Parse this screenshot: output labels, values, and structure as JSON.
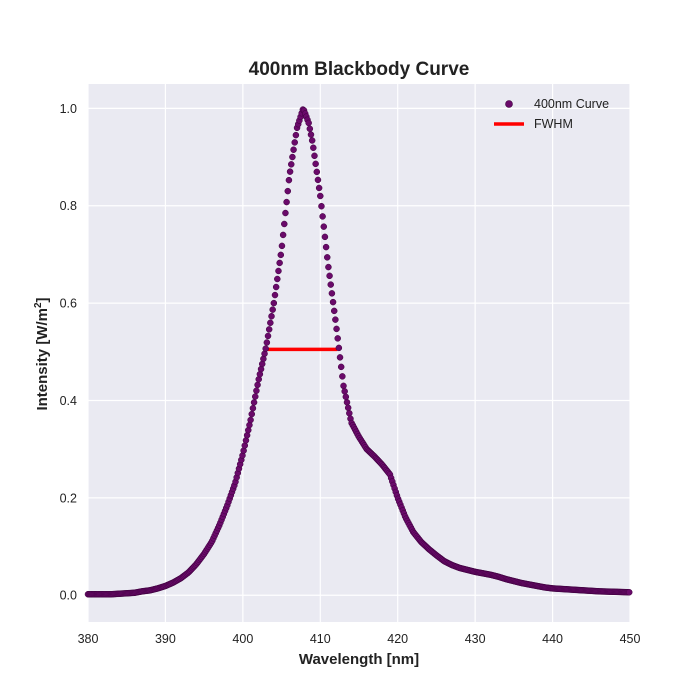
{
  "chart_data": {
    "type": "scatter",
    "title": "400nm Blackbody Curve",
    "xlabel": "Wavelength [nm]",
    "ylabel": "Intensity [W/m",
    "ylabel_sup": "2",
    "ylabel_close": "]",
    "xlim": [
      380,
      450
    ],
    "ylim": [
      -0.055,
      1.05
    ],
    "xticks": [
      380,
      390,
      400,
      410,
      420,
      430,
      440,
      450
    ],
    "xtick_labels": [
      "380",
      "390",
      "400",
      "410",
      "420",
      "430",
      "440",
      "450"
    ],
    "yticks": [
      0.0,
      0.2,
      0.4,
      0.6,
      0.8,
      1.0
    ],
    "ytick_labels": [
      "0.0",
      "0.2",
      "0.4",
      "0.6",
      "0.8",
      "1.0"
    ],
    "grid": true,
    "legend_position": "top-right",
    "series": [
      {
        "name": "400nm Curve",
        "kind": "scatter",
        "color": "#6a0a6a",
        "points": [
          [
            380,
            0.002
          ],
          [
            381,
            0.002
          ],
          [
            382,
            0.002
          ],
          [
            383,
            0.002
          ],
          [
            384,
            0.003
          ],
          [
            385,
            0.004
          ],
          [
            386,
            0.005
          ],
          [
            387,
            0.008
          ],
          [
            388,
            0.01
          ],
          [
            389,
            0.014
          ],
          [
            390,
            0.019
          ],
          [
            391,
            0.026
          ],
          [
            392,
            0.035
          ],
          [
            393,
            0.047
          ],
          [
            394,
            0.064
          ],
          [
            395,
            0.085
          ],
          [
            396,
            0.11
          ],
          [
            397,
            0.145
          ],
          [
            398,
            0.185
          ],
          [
            399,
            0.23
          ],
          [
            400,
            0.29
          ],
          [
            401,
            0.36
          ],
          [
            402,
            0.44
          ],
          [
            403,
            0.51
          ],
          [
            404,
            0.6
          ],
          [
            405,
            0.71
          ],
          [
            406,
            0.86
          ],
          [
            407,
            0.96
          ],
          [
            407.8,
            1.0
          ],
          [
            408.5,
            0.97
          ],
          [
            409,
            0.93
          ],
          [
            410,
            0.82
          ],
          [
            411,
            0.68
          ],
          [
            412,
            0.56
          ],
          [
            413,
            0.43
          ],
          [
            414,
            0.355
          ],
          [
            415,
            0.325
          ],
          [
            416,
            0.3
          ],
          [
            417,
            0.285
          ],
          [
            418,
            0.268
          ],
          [
            419,
            0.248
          ],
          [
            420,
            0.2
          ],
          [
            421,
            0.16
          ],
          [
            422,
            0.13
          ],
          [
            423,
            0.11
          ],
          [
            424,
            0.095
          ],
          [
            425,
            0.082
          ],
          [
            426,
            0.07
          ],
          [
            427,
            0.062
          ],
          [
            428,
            0.056
          ],
          [
            429,
            0.052
          ],
          [
            430,
            0.048
          ],
          [
            431,
            0.045
          ],
          [
            432,
            0.042
          ],
          [
            433,
            0.038
          ],
          [
            434,
            0.033
          ],
          [
            435,
            0.029
          ],
          [
            436,
            0.025
          ],
          [
            437,
            0.022
          ],
          [
            438,
            0.019
          ],
          [
            439,
            0.016
          ],
          [
            440,
            0.014
          ],
          [
            442,
            0.012
          ],
          [
            444,
            0.01
          ],
          [
            446,
            0.008
          ],
          [
            448,
            0.007
          ],
          [
            450,
            0.006
          ]
        ]
      },
      {
        "name": "FWHM",
        "kind": "line",
        "color": "#ff0000",
        "x": [
          403,
          412.2
        ],
        "y": [
          0.505,
          0.505
        ]
      }
    ]
  }
}
